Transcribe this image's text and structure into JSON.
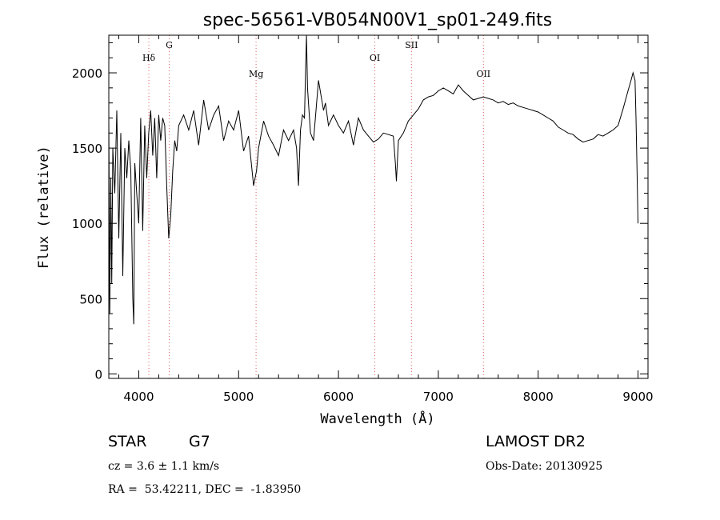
{
  "chart_data": {
    "type": "line",
    "title": "spec-56561-VB054N00V1_sp01-249.fits",
    "xlabel": "Wavelength (Å)",
    "ylabel": "Flux (relative)",
    "xlim": [
      3700,
      9100
    ],
    "ylim": [
      -30,
      2250
    ],
    "x_ticks": [
      4000,
      5000,
      6000,
      7000,
      8000,
      9000
    ],
    "y_ticks": [
      0,
      500,
      1000,
      1500,
      2000
    ],
    "grid": false,
    "line_color": "#000000",
    "marker_color": "#e06060",
    "lines": [
      {
        "label": "Hδ",
        "x": 4101
      },
      {
        "label": "G",
        "x": 4305
      },
      {
        "label": "Mg",
        "x": 5175
      },
      {
        "label": "OI",
        "x": 6364
      },
      {
        "label": "SII",
        "x": 6731
      },
      {
        "label": "OII",
        "x": 7452
      }
    ],
    "series": [
      {
        "x": [
          3700,
          3710,
          3720,
          3730,
          3740,
          3760,
          3780,
          3800,
          3820,
          3840,
          3860,
          3880,
          3900,
          3920,
          3940,
          3950,
          3960,
          3980,
          4000,
          4020,
          4040,
          4060,
          4080,
          4100,
          4120,
          4140,
          4160,
          4180,
          4200,
          4220,
          4240,
          4260,
          4280,
          4300,
          4320,
          4340,
          4360,
          4380,
          4400,
          4450,
          4500,
          4550,
          4600,
          4650,
          4700,
          4750,
          4800,
          4850,
          4900,
          4950,
          5000,
          5050,
          5100,
          5150,
          5180,
          5200,
          5250,
          5300,
          5350,
          5400,
          5450,
          5500,
          5550,
          5580,
          5600,
          5620,
          5640,
          5660,
          5670,
          5680,
          5690,
          5700,
          5720,
          5750,
          5800,
          5850,
          5870,
          5900,
          5950,
          6000,
          6050,
          6100,
          6150,
          6200,
          6250,
          6300,
          6350,
          6400,
          6450,
          6500,
          6550,
          6570,
          6580,
          6600,
          6650,
          6700,
          6750,
          6800,
          6850,
          6900,
          6950,
          7000,
          7050,
          7100,
          7150,
          7200,
          7250,
          7300,
          7350,
          7400,
          7450,
          7500,
          7550,
          7600,
          7650,
          7700,
          7750,
          7800,
          7850,
          7900,
          7950,
          8000,
          8050,
          8100,
          8150,
          8200,
          8250,
          8300,
          8350,
          8400,
          8450,
          8500,
          8550,
          8600,
          8650,
          8700,
          8750,
          8800,
          8850,
          8900,
          8930,
          8950,
          8970,
          8980,
          8990,
          9000
        ],
        "values": [
          1700,
          400,
          1300,
          600,
          1500,
          1200,
          1750,
          900,
          1600,
          650,
          1500,
          1300,
          1550,
          1350,
          500,
          330,
          1400,
          1200,
          1000,
          1700,
          950,
          1650,
          1300,
          1600,
          1750,
          1450,
          1700,
          1300,
          1720,
          1550,
          1700,
          1650,
          1250,
          900,
          1050,
          1350,
          1550,
          1480,
          1650,
          1720,
          1620,
          1750,
          1520,
          1820,
          1620,
          1720,
          1780,
          1550,
          1680,
          1620,
          1750,
          1480,
          1580,
          1250,
          1350,
          1500,
          1680,
          1580,
          1520,
          1450,
          1620,
          1550,
          1620,
          1500,
          1250,
          1620,
          1720,
          1700,
          2000,
          2250,
          1900,
          1800,
          1600,
          1550,
          1950,
          1750,
          1800,
          1650,
          1720,
          1650,
          1600,
          1680,
          1520,
          1700,
          1620,
          1580,
          1540,
          1560,
          1600,
          1590,
          1580,
          1400,
          1280,
          1550,
          1600,
          1680,
          1720,
          1760,
          1820,
          1840,
          1850,
          1880,
          1900,
          1880,
          1860,
          1920,
          1880,
          1850,
          1820,
          1830,
          1840,
          1830,
          1820,
          1800,
          1810,
          1790,
          1800,
          1780,
          1770,
          1760,
          1750,
          1740,
          1720,
          1700,
          1680,
          1640,
          1620,
          1600,
          1590,
          1560,
          1540,
          1550,
          1560,
          1590,
          1580,
          1600,
          1620,
          1650,
          1760,
          1880,
          1950,
          2000,
          1950,
          1700,
          1350,
          1000
        ]
      }
    ],
    "footer": {
      "obj_class": "STAR",
      "subclass": "G7",
      "cz": "cz = 3.6 ± 1.1 km/s",
      "coords": "RA =  53.42211, DEC =  -1.83950",
      "survey": "LAMOST DR2",
      "obs_date": "Obs-Date: 20130925"
    }
  }
}
